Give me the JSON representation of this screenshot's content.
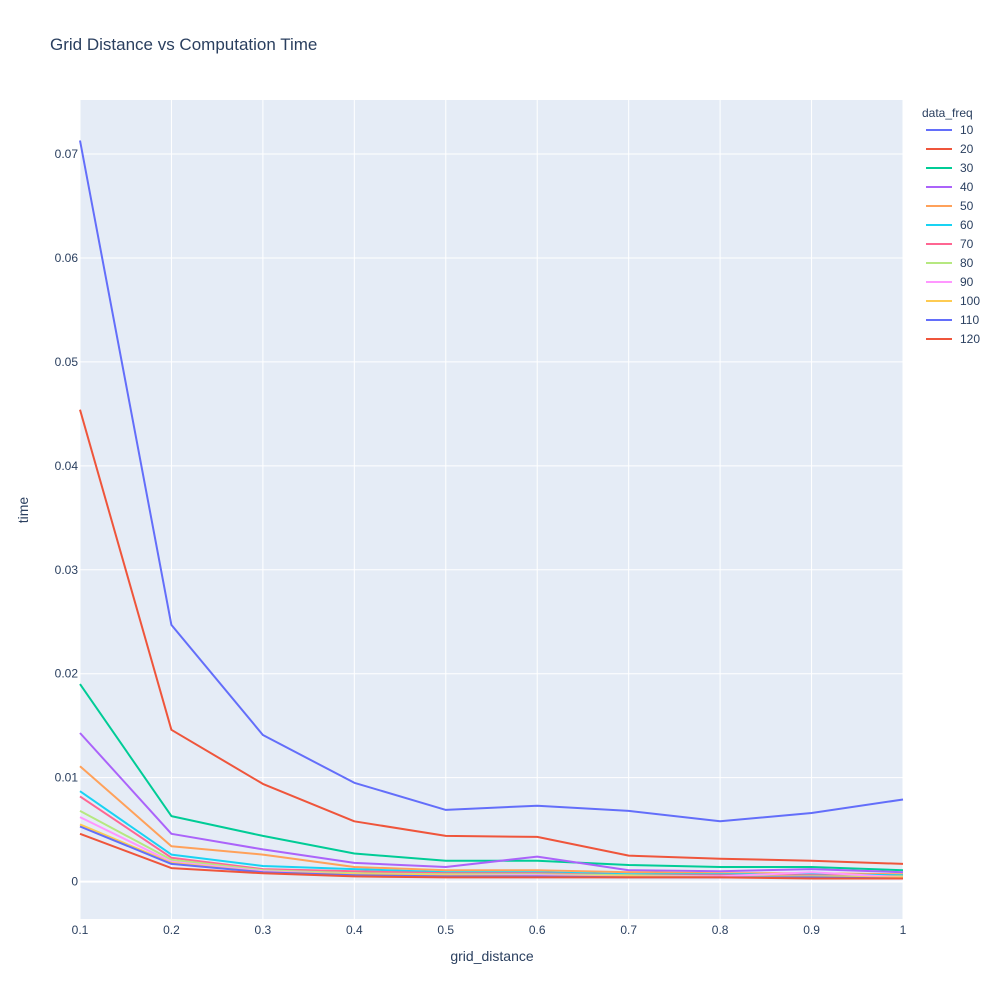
{
  "chart_data": {
    "type": "line",
    "title": "Grid Distance vs Computation Time",
    "xlabel": "grid_distance",
    "ylabel": "time",
    "x": [
      0.1,
      0.2,
      0.3,
      0.4,
      0.5,
      0.6,
      0.7,
      0.8,
      0.9,
      1.0
    ],
    "xlim": [
      0.1,
      1.0
    ],
    "ylim": [
      -0.0036,
      0.0752
    ],
    "x_ticks": [
      0.1,
      0.2,
      0.3,
      0.4,
      0.5,
      0.6,
      0.7,
      0.8,
      0.9,
      1.0
    ],
    "x_tick_labels": [
      "0.1",
      "0.2",
      "0.3",
      "0.4",
      "0.5",
      "0.6",
      "0.7",
      "0.8",
      "0.9",
      "1"
    ],
    "y_ticks": [
      0,
      0.01,
      0.02,
      0.03,
      0.04,
      0.05,
      0.06,
      0.07
    ],
    "y_tick_labels": [
      "0",
      "0.01",
      "0.02",
      "0.03",
      "0.04",
      "0.05",
      "0.06",
      "0.07"
    ],
    "grid": true,
    "plot_background": "#e5ecf6",
    "grid_color": "#ffffff",
    "legend": {
      "title": "data_freq",
      "placement": "right"
    },
    "series": [
      {
        "name": "10",
        "color": "#636efa",
        "values": [
          0.0713,
          0.0247,
          0.0141,
          0.0095,
          0.0069,
          0.0073,
          0.0068,
          0.0058,
          0.0066,
          0.0079
        ]
      },
      {
        "name": "20",
        "color": "#EF553B",
        "values": [
          0.0454,
          0.0146,
          0.0094,
          0.0058,
          0.0044,
          0.0043,
          0.0025,
          0.0022,
          0.002,
          0.0017
        ]
      },
      {
        "name": "30",
        "color": "#00cc96",
        "values": [
          0.019,
          0.0063,
          0.0044,
          0.0027,
          0.002,
          0.002,
          0.0016,
          0.0014,
          0.0014,
          0.0011
        ]
      },
      {
        "name": "40",
        "color": "#ab63fa",
        "values": [
          0.0143,
          0.0046,
          0.0031,
          0.0018,
          0.0014,
          0.0024,
          0.0011,
          0.001,
          0.0012,
          0.0009
        ]
      },
      {
        "name": "50",
        "color": "#FFA15A",
        "values": [
          0.0111,
          0.0034,
          0.0026,
          0.0014,
          0.0011,
          0.0011,
          0.0009,
          0.0008,
          0.0008,
          0.0007
        ]
      },
      {
        "name": "60",
        "color": "#19d3f3",
        "values": [
          0.0087,
          0.0026,
          0.0015,
          0.0012,
          0.0009,
          0.0009,
          0.0007,
          0.0007,
          0.0007,
          0.0006
        ]
      },
      {
        "name": "70",
        "color": "#FF6692",
        "values": [
          0.0082,
          0.0023,
          0.0012,
          0.001,
          0.0008,
          0.0008,
          0.0006,
          0.0006,
          0.0006,
          0.0005
        ]
      },
      {
        "name": "80",
        "color": "#B6E880",
        "values": [
          0.0068,
          0.0021,
          0.0011,
          0.0008,
          0.0007,
          0.0007,
          0.0006,
          0.0005,
          0.0005,
          0.0005
        ]
      },
      {
        "name": "90",
        "color": "#FF97FF",
        "values": [
          0.0062,
          0.0019,
          0.001,
          0.0007,
          0.0006,
          0.0006,
          0.0005,
          0.0005,
          0.0009,
          0.0004
        ]
      },
      {
        "name": "100",
        "color": "#FECB52",
        "values": [
          0.0055,
          0.0018,
          0.0009,
          0.0007,
          0.0006,
          0.0005,
          0.0005,
          0.0004,
          0.0004,
          0.0004
        ]
      },
      {
        "name": "110",
        "color": "#636efa",
        "values": [
          0.0053,
          0.0017,
          0.0009,
          0.0006,
          0.0005,
          0.0005,
          0.0004,
          0.0004,
          0.0004,
          0.0003
        ]
      },
      {
        "name": "120",
        "color": "#EF553B",
        "values": [
          0.0046,
          0.0013,
          0.0008,
          0.0005,
          0.0004,
          0.0004,
          0.0004,
          0.0004,
          0.0003,
          0.0003
        ]
      }
    ]
  }
}
